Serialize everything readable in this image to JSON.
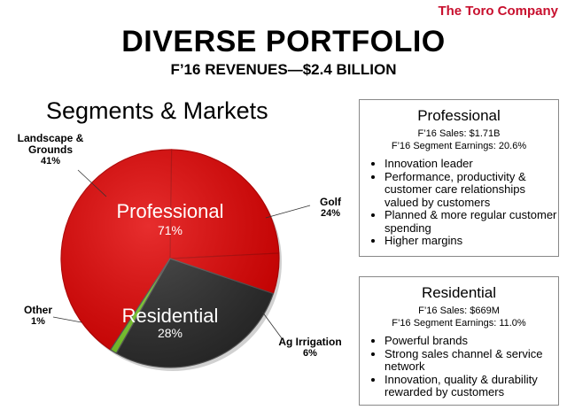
{
  "brand": "The Toro Company",
  "title": "DIVERSE PORTFOLIO",
  "subtitle": "F’16 REVENUES—$2.4 BILLION",
  "section_title": "Segments & Markets",
  "colors": {
    "red": "#e20000",
    "red_dark": "#b50000",
    "dark": "#2b2b2b",
    "green": "#7ccf2a",
    "brand_red": "#c8102e"
  },
  "chart_data": {
    "type": "pie",
    "title": "",
    "slices": [
      {
        "label": "Landscape & Grounds",
        "value": 41,
        "value_label": "41%",
        "group": "Professional",
        "color": "#e20000"
      },
      {
        "label": "Golf",
        "value": 24,
        "value_label": "24%",
        "group": "Professional",
        "color": "#e20000"
      },
      {
        "label": "Ag Irrigation",
        "value": 6,
        "value_label": "6%",
        "group": "Professional",
        "color": "#e20000"
      },
      {
        "label": "Residential",
        "value": 28,
        "value_label": "28%",
        "group": "Residential",
        "color": "#2b2b2b"
      },
      {
        "label": "Other",
        "value": 1,
        "value_label": "1%",
        "group": "Other",
        "color": "#7ccf2a"
      }
    ],
    "groups": [
      {
        "name": "Professional",
        "value": 71,
        "value_label": "71%"
      },
      {
        "name": "Residential",
        "value": 28,
        "value_label": "28%"
      }
    ]
  },
  "boxes": {
    "professional": {
      "title": "Professional",
      "sales": "F’16 Sales:  $1.71B",
      "earnings": "F’16 Segment Earnings:  20.6%",
      "bullets": [
        "Innovation leader",
        "Performance, productivity & customer care relationships valued by customers",
        "Planned & more regular customer spending",
        "Higher margins"
      ]
    },
    "residential": {
      "title": "Residential",
      "sales": "F’16 Sales:  $669M",
      "earnings": "F’16 Segment Earnings:  11.0%",
      "bullets": [
        "Powerful brands",
        "Strong sales channel & service network",
        "Innovation, quality & durability rewarded by customers"
      ]
    }
  }
}
